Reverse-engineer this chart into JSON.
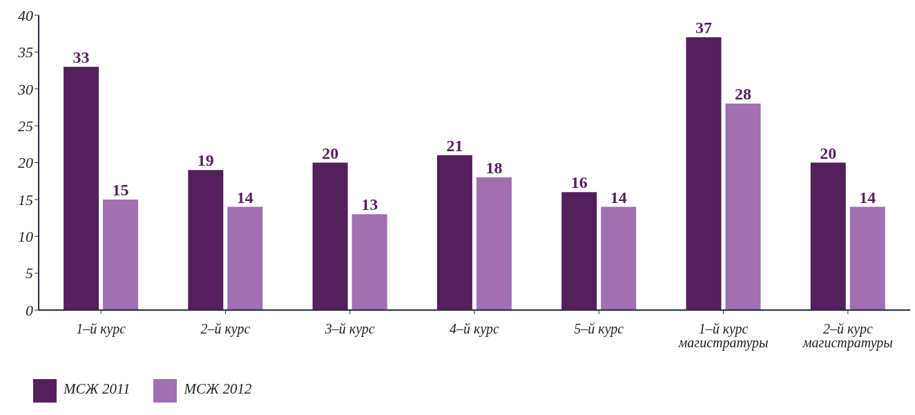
{
  "chart_data": {
    "type": "bar",
    "categories": [
      "1–й курс",
      "2–й курс",
      "3–й курс",
      "4–й курс",
      "5–й курс",
      "1–й курс магистратуры",
      "2–й курс магистратуры"
    ],
    "series": [
      {
        "name": "МСЖ 2011",
        "color": "#541f5c",
        "values": [
          33,
          19,
          20,
          21,
          16,
          37,
          20
        ]
      },
      {
        "name": "МСЖ 2012",
        "color": "#a070b0",
        "values": [
          15,
          14,
          13,
          18,
          14,
          28,
          14
        ]
      }
    ],
    "ylim": [
      0,
      40
    ],
    "yticks": [
      0,
      5,
      10,
      15,
      20,
      25,
      30,
      35,
      40
    ],
    "grid": false,
    "legend": "bottom left",
    "data_labels": true
  }
}
